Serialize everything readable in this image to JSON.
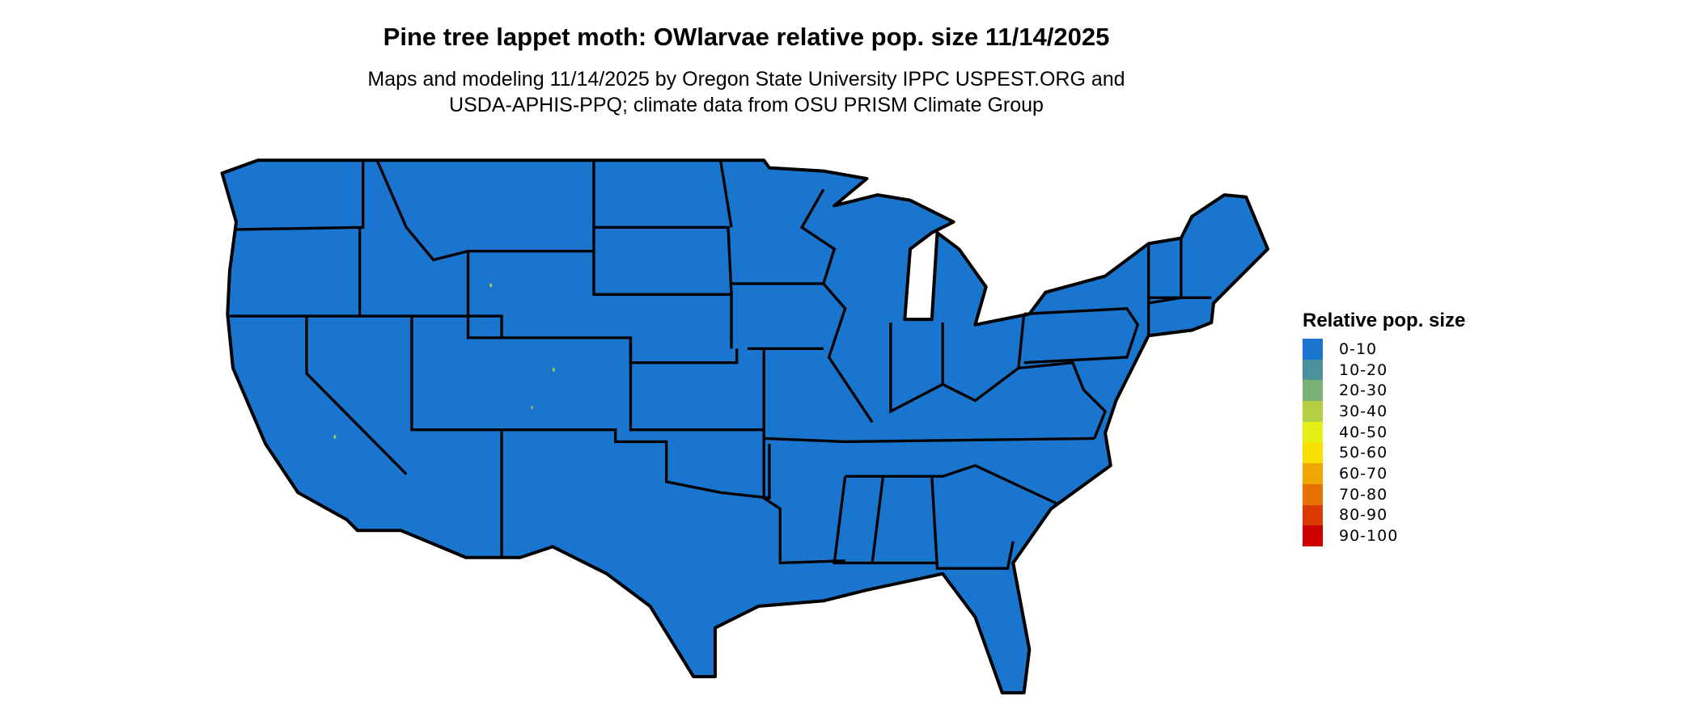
{
  "title": "Pine tree lappet moth: OWlarvae relative pop. size 11/14/2025",
  "subtitle_lines": [
    "Maps and modeling 11/14/2025 by Oregon State University IPPC USPEST.ORG and",
    "USDA-APHIS-PPQ; climate data from OSU PRISM Climate Group"
  ],
  "map": {
    "region": "Contiguous United States",
    "dominant_class": "0-10",
    "fill_color": "#1a75cf",
    "border_color": "#000000"
  },
  "legend": {
    "title": "Relative pop. size",
    "items": [
      {
        "label": "0-10",
        "color": "#1a75cf"
      },
      {
        "label": "10-20",
        "color": "#4a919b"
      },
      {
        "label": "20-30",
        "color": "#7bb174"
      },
      {
        "label": "30-40",
        "color": "#b3d045"
      },
      {
        "label": "40-50",
        "color": "#e4f016"
      },
      {
        "label": "50-60",
        "color": "#f8e000"
      },
      {
        "label": "60-70",
        "color": "#f0a800"
      },
      {
        "label": "70-80",
        "color": "#e57200"
      },
      {
        "label": "80-90",
        "color": "#dc3900"
      },
      {
        "label": "90-100",
        "color": "#cc0000"
      }
    ]
  }
}
